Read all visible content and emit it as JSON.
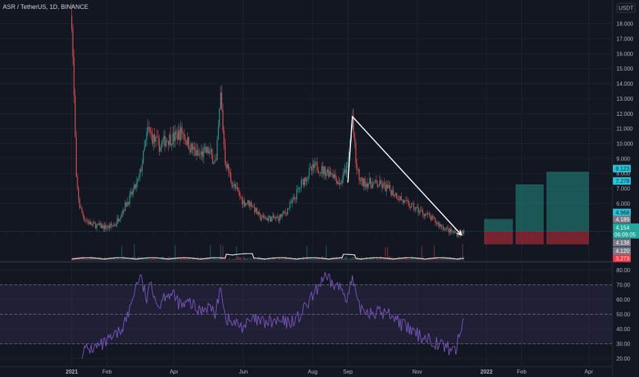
{
  "header": {
    "title": "ASR / TetherUS, 1D, BINANCE",
    "currency_label": "USDT"
  },
  "chart_data": [
    {
      "type": "candlestick",
      "title": "ASR / TetherUS, 1D, BINANCE",
      "ylim": [
        3.2,
        18.6
      ],
      "y_ticks": [
        "18.000",
        "17.000",
        "16.000",
        "15.000",
        "14.000",
        "13.000",
        "12.000",
        "11.000",
        "10.000",
        "9.000",
        "8.000",
        "7.000",
        "6.000"
      ],
      "y_tick_values": [
        18,
        17,
        16,
        15,
        14,
        13,
        12,
        11,
        10,
        9,
        8,
        7,
        6
      ],
      "x_ticks": [
        "2021",
        "Feb",
        "Apr",
        "Jun",
        "Aug",
        "Sep",
        "Nov",
        "2022",
        "Feb",
        "Apr"
      ],
      "x_tick_dates": [
        "2021-01-01",
        "2021-02-01",
        "2021-04-01",
        "2021-06-01",
        "2021-08-01",
        "2021-09-01",
        "2021-11-01",
        "2022-01-01",
        "2022-02-01",
        "2022-04-01"
      ],
      "close_series": {
        "dates": [
          "2021-01-01",
          "2021-01-05",
          "2021-01-08",
          "2021-01-12",
          "2021-01-18",
          "2021-01-25",
          "2021-02-01",
          "2021-02-08",
          "2021-02-15",
          "2021-02-22",
          "2021-03-01",
          "2021-03-05",
          "2021-03-09",
          "2021-03-15",
          "2021-03-20",
          "2021-03-25",
          "2021-04-01",
          "2021-04-08",
          "2021-04-15",
          "2021-04-22",
          "2021-05-01",
          "2021-05-08",
          "2021-05-12",
          "2021-05-16",
          "2021-05-22",
          "2021-05-28",
          "2021-06-01",
          "2021-06-08",
          "2021-06-15",
          "2021-06-22",
          "2021-07-01",
          "2021-07-08",
          "2021-07-15",
          "2021-07-22",
          "2021-07-28",
          "2021-08-04",
          "2021-08-10",
          "2021-08-18",
          "2021-08-25",
          "2021-09-01",
          "2021-09-05",
          "2021-09-08",
          "2021-09-12",
          "2021-09-18",
          "2021-09-25",
          "2021-10-01",
          "2021-10-08",
          "2021-10-15",
          "2021-10-22",
          "2021-11-01",
          "2021-11-08",
          "2021-11-15",
          "2021-11-22",
          "2021-12-01",
          "2021-12-07",
          "2021-12-12"
        ],
        "close": [
          18.5,
          7.5,
          5.8,
          5.0,
          4.6,
          4.5,
          4.4,
          4.6,
          5.6,
          6.5,
          7.6,
          9.2,
          10.9,
          10.2,
          9.8,
          10.3,
          10.4,
          10.8,
          9.8,
          9.2,
          9.5,
          8.7,
          13.2,
          8.9,
          7.4,
          6.6,
          6.1,
          6.0,
          5.1,
          5.0,
          5.0,
          5.4,
          6.2,
          7.3,
          8.0,
          8.5,
          8.2,
          8.1,
          7.3,
          8.6,
          11.8,
          8.6,
          7.4,
          7.4,
          7.3,
          7.2,
          6.9,
          6.5,
          6.0,
          5.6,
          5.3,
          4.9,
          4.5,
          4.1,
          4.0,
          4.15
        ]
      },
      "current_price": "4.154",
      "countdown": "06:09:05",
      "price_tags": [
        {
          "value": "8.123",
          "color": "#26c6da"
        },
        {
          "value": "7.278",
          "color": "#26c6da"
        },
        {
          "value": "4.968",
          "color": "#26c6da"
        },
        {
          "value": "4.189",
          "color": "#787b86"
        },
        {
          "value": "4.138",
          "color": "#787b86"
        },
        {
          "value": "4.120",
          "color": "#787b86"
        },
        {
          "value": "3.273",
          "color": "#f23645"
        }
      ],
      "projections": [
        {
          "entry": 4.154,
          "target": 4.968,
          "stop": 3.273
        },
        {
          "entry": 4.154,
          "target": 7.278,
          "stop": 3.273
        },
        {
          "entry": 4.154,
          "target": 8.123,
          "stop": 3.273
        }
      ],
      "drawing": {
        "polyline": [
          [
            "2021-09-01",
            7.4
          ],
          [
            "2021-09-05",
            11.8
          ],
          [
            "2021-12-10",
            3.9
          ]
        ],
        "arrow_head": true
      },
      "colors": {
        "up": "#26a69a",
        "down": "#ef5350",
        "background": "#131722",
        "drawing": "#ffffff",
        "profit": "#26c6da",
        "loss": "#f23645"
      }
    },
    {
      "type": "line",
      "ylim": [
        15,
        85
      ],
      "y_ticks": [
        "80.00",
        "70.00",
        "60.00",
        "50.00",
        "40.00",
        "30.00",
        "20.00"
      ],
      "y_tick_values": [
        80,
        70,
        60,
        50,
        40,
        30,
        20
      ],
      "bands": {
        "upper": 70,
        "middle": 50,
        "lower": 30
      },
      "series": [
        {
          "dates": [
            "2021-01-10",
            "2021-01-20",
            "2021-01-28",
            "2021-02-05",
            "2021-02-12",
            "2021-02-20",
            "2021-02-25",
            "2021-03-02",
            "2021-03-08",
            "2021-03-12",
            "2021-03-18",
            "2021-03-25",
            "2021-04-01",
            "2021-04-08",
            "2021-04-15",
            "2021-04-22",
            "2021-05-01",
            "2021-05-08",
            "2021-05-12",
            "2021-05-16",
            "2021-05-22",
            "2021-06-01",
            "2021-06-10",
            "2021-06-20",
            "2021-07-01",
            "2021-07-10",
            "2021-07-20",
            "2021-07-26",
            "2021-08-03",
            "2021-08-10",
            "2021-08-18",
            "2021-08-25",
            "2021-09-01",
            "2021-09-05",
            "2021-09-10",
            "2021-09-20",
            "2021-10-01",
            "2021-10-10",
            "2021-10-20",
            "2021-11-01",
            "2021-11-10",
            "2021-11-20",
            "2021-11-28",
            "2021-12-05",
            "2021-12-12"
          ],
          "values": [
            25,
            27,
            29,
            33,
            38,
            50,
            66,
            76,
            60,
            72,
            55,
            65,
            62,
            55,
            58,
            52,
            56,
            50,
            72,
            48,
            44,
            42,
            46,
            44,
            45,
            44,
            48,
            55,
            64,
            75,
            71,
            68,
            62,
            74,
            55,
            52,
            51,
            50,
            42,
            36,
            34,
            30,
            27,
            26,
            47
          ]
        }
      ],
      "colors": {
        "line": "#7e57c2",
        "band": "#7e57c2"
      }
    }
  ]
}
